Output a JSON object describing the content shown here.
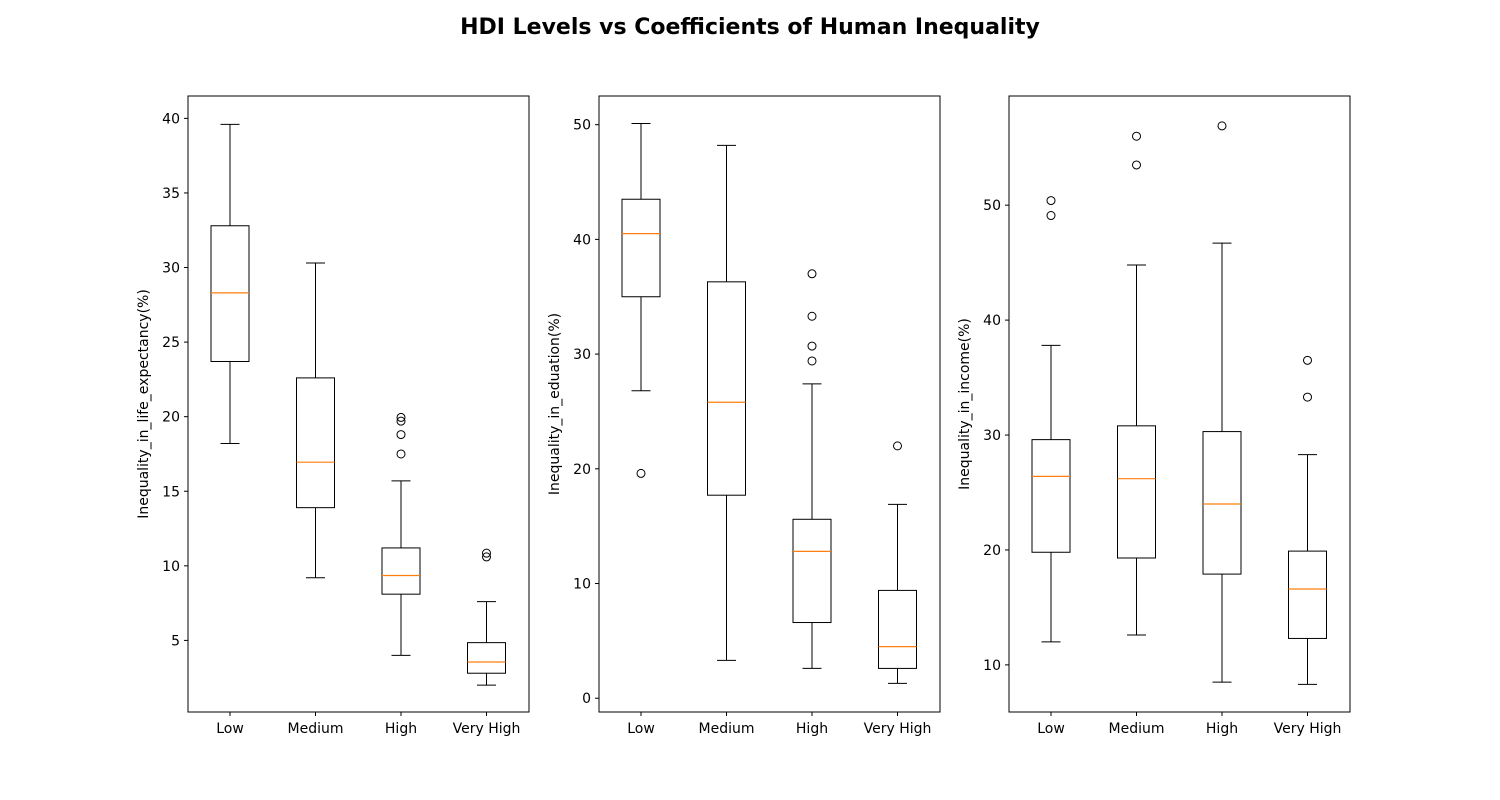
{
  "figure": {
    "title": "HDI Levels vs Coefficients of Human Inequality"
  },
  "colors": {
    "box": "#000000",
    "median": "#ff7f0e",
    "background": "#ffffff"
  },
  "chart_data": [
    {
      "type": "box",
      "categories": [
        "Low",
        "Medium",
        "High",
        "Very High"
      ],
      "ylabel": "Inequality_in_life_expectancy(%)",
      "ylim": [
        0.2,
        41.5
      ],
      "yticks": [
        5,
        10,
        15,
        20,
        25,
        30,
        35,
        40
      ],
      "boxes": [
        {
          "whisker_low": 18.2,
          "q1": 23.7,
          "median": 28.3,
          "q3": 32.8,
          "whisker_high": 39.6,
          "fliers": []
        },
        {
          "whisker_low": 9.2,
          "q1": 13.9,
          "median": 16.95,
          "q3": 22.6,
          "whisker_high": 30.3,
          "fliers": []
        },
        {
          "whisker_low": 4.0,
          "q1": 8.1,
          "median": 9.35,
          "q3": 11.2,
          "whisker_high": 15.7,
          "fliers": [
            17.5,
            18.8,
            19.7,
            19.95
          ]
        },
        {
          "whisker_low": 2.0,
          "q1": 2.8,
          "median": 3.55,
          "q3": 4.85,
          "whisker_high": 7.6,
          "fliers": [
            10.6,
            10.85
          ]
        }
      ]
    },
    {
      "type": "box",
      "categories": [
        "Low",
        "Medium",
        "High",
        "Very High"
      ],
      "ylabel": "Inequality_in_eduation(%)",
      "ylim": [
        -1.2,
        52.5
      ],
      "yticks": [
        0,
        10,
        20,
        30,
        40,
        50
      ],
      "boxes": [
        {
          "whisker_low": 26.8,
          "q1": 35.0,
          "median": 40.5,
          "q3": 43.5,
          "whisker_high": 50.1,
          "fliers": [
            19.6
          ]
        },
        {
          "whisker_low": 3.3,
          "q1": 17.7,
          "median": 25.8,
          "q3": 36.3,
          "whisker_high": 48.2,
          "fliers": []
        },
        {
          "whisker_low": 2.6,
          "q1": 6.6,
          "median": 12.8,
          "q3": 15.6,
          "whisker_high": 27.4,
          "fliers": [
            29.4,
            30.7,
            33.3,
            37.0
          ]
        },
        {
          "whisker_low": 1.3,
          "q1": 2.6,
          "median": 4.5,
          "q3": 9.4,
          "whisker_high": 16.9,
          "fliers": [
            22.0
          ]
        }
      ]
    },
    {
      "type": "box",
      "categories": [
        "Low",
        "Medium",
        "High",
        "Very High"
      ],
      "ylabel": "Inequality_in_income(%)",
      "ylim": [
        5.9,
        59.5
      ],
      "yticks": [
        10,
        20,
        30,
        40,
        50
      ],
      "boxes": [
        {
          "whisker_low": 12.0,
          "q1": 19.8,
          "median": 26.4,
          "q3": 29.6,
          "whisker_high": 37.8,
          "fliers": [
            49.1,
            50.4
          ]
        },
        {
          "whisker_low": 12.6,
          "q1": 19.3,
          "median": 26.2,
          "q3": 30.8,
          "whisker_high": 44.8,
          "fliers": [
            53.5,
            56.0
          ]
        },
        {
          "whisker_low": 8.5,
          "q1": 17.9,
          "median": 24.0,
          "q3": 30.3,
          "whisker_high": 46.7,
          "fliers": [
            56.9
          ]
        },
        {
          "whisker_low": 8.3,
          "q1": 12.3,
          "median": 16.6,
          "q3": 19.9,
          "whisker_high": 28.3,
          "fliers": [
            33.3,
            36.5
          ]
        }
      ]
    }
  ]
}
